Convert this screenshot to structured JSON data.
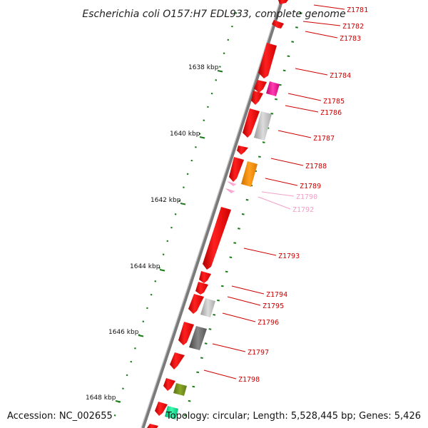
{
  "title": "Escherichia coli O157:H7 EDL933, complete genome",
  "footer": {
    "accession": "Accession: NC_002655",
    "topology": "Topology: circular; Length: 5,528,445 bp; Genes: 5,426"
  },
  "scale_labels": [
    "1638 kbp",
    "1640 kbp",
    "1642 kbp",
    "1644 kbp",
    "1646 kbp",
    "1648 kbp"
  ],
  "colors": {
    "backbone": "#808080",
    "gene_default": "#ff0000",
    "label_default": "#cc0000",
    "label_faded": "#f3a0c8",
    "tick": "#1a7a1a"
  },
  "genes": [
    {
      "label": "Z1781",
      "faded": false
    },
    {
      "label": "Z1782",
      "faded": false
    },
    {
      "label": "Z1783",
      "faded": false
    },
    {
      "label": "Z1784",
      "faded": false
    },
    {
      "label": "Z1785",
      "faded": false
    },
    {
      "label": "Z1786",
      "faded": false
    },
    {
      "label": "Z1787",
      "faded": false
    },
    {
      "label": "Z1788",
      "faded": false
    },
    {
      "label": "Z1789",
      "faded": false
    },
    {
      "label": "Z1790",
      "faded": true
    },
    {
      "label": "Z1792",
      "faded": true
    },
    {
      "label": "Z1793",
      "faded": false
    },
    {
      "label": "Z1794",
      "faded": false
    },
    {
      "label": "Z1795",
      "faded": false
    },
    {
      "label": "Z1796",
      "faded": false
    },
    {
      "label": "Z1797",
      "faded": false
    },
    {
      "label": "Z1798",
      "faded": false
    }
  ]
}
